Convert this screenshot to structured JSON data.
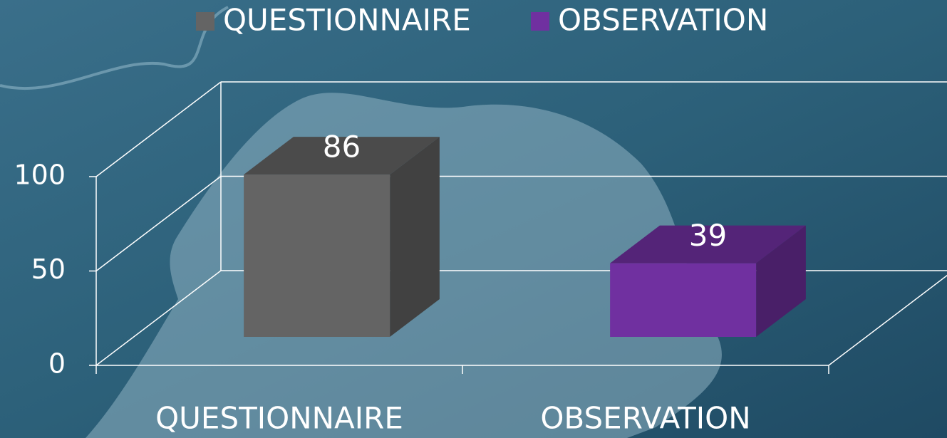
{
  "chart_data": {
    "type": "bar3d",
    "categories": [
      "QUESTIONNAIRE",
      "OBSERVATION"
    ],
    "values": [
      86,
      39
    ],
    "colors": [
      "#646464",
      "#7030a0"
    ],
    "ylim": [
      0,
      100
    ],
    "yticks": [
      0,
      50,
      100
    ],
    "grid": true,
    "legend": "top"
  }
}
